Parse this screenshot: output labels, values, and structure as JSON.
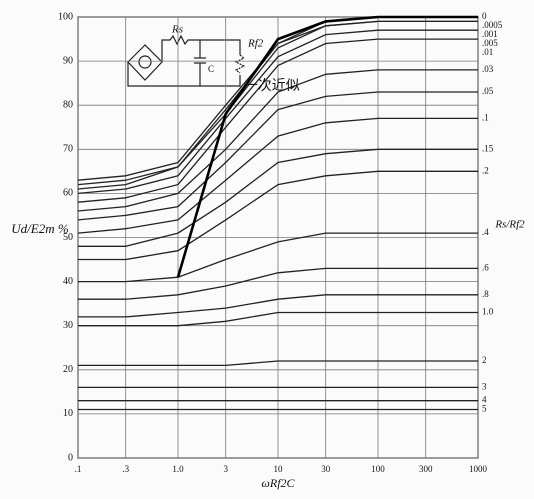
{
  "chart_data": {
    "type": "line",
    "xlabel": "ωRf2C",
    "ylabel": "Ud/E2m %",
    "y2label": "Rs/Rf2",
    "log_x": true,
    "grid": true,
    "color": "#222222",
    "xlim": [
      0.1,
      1000
    ],
    "ylim": [
      0,
      100
    ],
    "xticks": [
      {
        "value": 0.1,
        "label": ".1"
      },
      {
        "value": 0.3,
        "label": ".3"
      },
      {
        "value": 1,
        "label": "1.0"
      },
      3,
      10,
      30,
      100,
      300,
      1000
    ],
    "yticks": [
      0,
      10,
      20,
      30,
      40,
      50,
      60,
      70,
      80,
      90,
      100
    ],
    "x": [
      0.1,
      0.3,
      1,
      3,
      10,
      30,
      100,
      300,
      1000
    ],
    "series": [
      {
        "name": "0",
        "values": [
          63,
          64,
          67,
          80,
          94,
          99,
          100,
          100,
          100
        ]
      },
      {
        "name": ".0005",
        "values": [
          62,
          63,
          66,
          79,
          94,
          98,
          99,
          99,
          99
        ]
      },
      {
        "name": ".001",
        "values": [
          61,
          62,
          66,
          78,
          93,
          98,
          99,
          99,
          99
        ]
      },
      {
        "name": ".005",
        "values": [
          60,
          61,
          64,
          77,
          91,
          96,
          97,
          97,
          97
        ]
      },
      {
        "name": ".01",
        "values": [
          58,
          59,
          62,
          75,
          89,
          94,
          95,
          95,
          95
        ]
      },
      {
        "name": ".03",
        "values": [
          56,
          57,
          60,
          70,
          83,
          87,
          88,
          88,
          88
        ]
      },
      {
        "name": ".05",
        "values": [
          54,
          55,
          57,
          67,
          79,
          82,
          83,
          83,
          83
        ]
      },
      {
        "name": ".1",
        "values": [
          51,
          52,
          54,
          63,
          73,
          76,
          77,
          77,
          77
        ]
      },
      {
        "name": ".15",
        "values": [
          48,
          48,
          51,
          58,
          67,
          69,
          70,
          70,
          70
        ]
      },
      {
        "name": ".2",
        "values": [
          45,
          45,
          47,
          54,
          62,
          64,
          65,
          65,
          65
        ]
      },
      {
        "name": ".4",
        "values": [
          40,
          40,
          41,
          45,
          49,
          51,
          51,
          51,
          51
        ]
      },
      {
        "name": ".6",
        "values": [
          36,
          36,
          37,
          39,
          42,
          43,
          43,
          43,
          43
        ]
      },
      {
        "name": ".8",
        "values": [
          32,
          32,
          33,
          34,
          36,
          37,
          37,
          37,
          37
        ]
      },
      {
        "name": "1.0",
        "values": [
          30,
          30,
          30,
          31,
          33,
          33,
          33,
          33,
          33
        ]
      },
      {
        "name": "2",
        "values": [
          21,
          21,
          21,
          21,
          22,
          22,
          22,
          22,
          22
        ]
      },
      {
        "name": "3",
        "values": [
          16,
          16,
          16,
          16,
          16,
          16,
          16,
          16,
          16
        ]
      },
      {
        "name": "4",
        "values": [
          13,
          13,
          13,
          13,
          13,
          13,
          13,
          13,
          13
        ]
      },
      {
        "name": "5",
        "values": [
          11,
          11,
          11,
          11,
          11,
          11,
          11,
          11,
          11
        ]
      }
    ],
    "approximation": {
      "name": "一次近似",
      "values": [
        null,
        null,
        41,
        78,
        95,
        99,
        100,
        100,
        100
      ]
    },
    "inset": {
      "rs": "Rs",
      "rf2": "Rf2",
      "c": "C"
    }
  }
}
